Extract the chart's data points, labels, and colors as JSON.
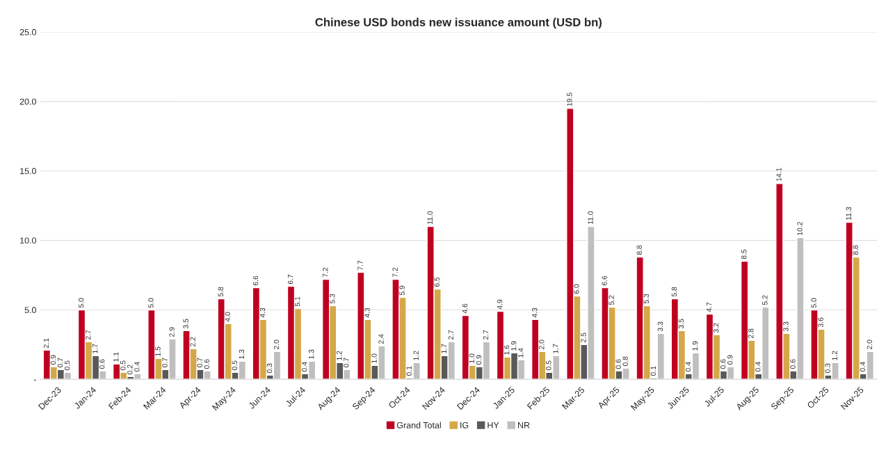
{
  "chart_data": {
    "type": "bar",
    "title": "Chinese USD bonds new issuance amount (USD bn)",
    "categories": [
      "Dec-23",
      "Jan-24",
      "Feb-24",
      "Mar-24",
      "Apr-24",
      "May-24",
      "Jun-24",
      "Jul-24",
      "Aug-24",
      "Sep-24",
      "Oct-24",
      "Nov-24",
      "Dec-24",
      "Jan-25",
      "Feb-25",
      "Mar-25",
      "Apr-25",
      "May-25",
      "Jun-25",
      "Jul-25",
      "Aug-25",
      "Sep-25",
      "Oct-25",
      "Nov-25"
    ],
    "series": [
      {
        "name": "Grand Total",
        "color": "#c00020",
        "values": [
          2.1,
          5.0,
          1.1,
          5.0,
          3.5,
          5.8,
          6.6,
          6.7,
          7.2,
          7.7,
          7.2,
          11.0,
          4.6,
          4.9,
          4.3,
          19.5,
          6.6,
          8.8,
          5.8,
          4.7,
          8.5,
          14.1,
          5.0,
          11.3
        ],
        "value_labels": [
          "2.1",
          "5.0",
          "1.1",
          "5.0",
          "3.5",
          "5.8",
          "6.6",
          "6.7",
          "7.2",
          "7.7",
          "7.2",
          "11.0",
          "4.6",
          "4.9",
          "4.3",
          "19.5",
          "6.6",
          "8.8",
          "5.8",
          "4.7",
          "8.5",
          "14.1",
          "5.0",
          "11.3"
        ]
      },
      {
        "name": "IG",
        "color": "#d4a849",
        "values": [
          0.9,
          2.7,
          0.5,
          1.5,
          2.2,
          4.0,
          4.3,
          5.1,
          5.3,
          4.3,
          5.9,
          6.5,
          1.0,
          1.6,
          2.0,
          6.0,
          5.2,
          5.3,
          3.5,
          3.2,
          2.8,
          3.3,
          3.6,
          8.8
        ],
        "value_labels": [
          "0.9",
          "2.7",
          "0.5",
          "1.5",
          "2.2",
          "4.0",
          "4.3",
          "5.1",
          "5.3",
          "4.3",
          "5.9",
          "6.5",
          "1.0",
          "1.6",
          "2.0",
          "6.0",
          "5.2",
          "5.3",
          "3.5",
          "3.2",
          "2.8",
          "3.3",
          "3.6",
          "8.8"
        ]
      },
      {
        "name": "HY",
        "color": "#595959",
        "values": [
          0.7,
          1.7,
          0.2,
          0.7,
          0.7,
          0.5,
          0.3,
          0.4,
          1.2,
          1.0,
          0.1,
          1.7,
          0.9,
          1.9,
          0.5,
          2.5,
          0.6,
          0.1,
          0.4,
          0.6,
          0.4,
          0.6,
          0.3,
          0.4
        ],
        "value_labels": [
          "0.7",
          "1.7",
          "0.2",
          "0.7",
          "0.7",
          "0.5",
          "0.3",
          "0.4",
          "1.2",
          "1.0",
          "0.1",
          "1.7",
          "0.9",
          "1.9",
          "0.5",
          "2.5",
          "0.6",
          "0.1",
          "0.4",
          "0.6",
          "0.4",
          "0.6",
          "0.3",
          "0.4"
        ]
      },
      {
        "name": "NR",
        "color": "#bfbfbf",
        "values": [
          0.5,
          0.6,
          0.4,
          2.9,
          0.6,
          1.3,
          2.0,
          1.3,
          0.7,
          2.4,
          1.2,
          2.7,
          2.7,
          1.4,
          1.7,
          11.0,
          0.8,
          3.3,
          1.9,
          0.9,
          5.2,
          10.2,
          1.2,
          2.0
        ],
        "value_labels": [
          "0.5",
          "0.6",
          "0.4",
          "2.9",
          "0.6",
          "1.3",
          "2.0",
          "1.3",
          "0.7",
          "2.4",
          "1.2",
          "2.7",
          "2.7",
          "1.4",
          "1.7",
          "11.0",
          "0.8",
          "3.3",
          "1.9",
          "0.9",
          "5.2",
          "10.2",
          "1.2",
          "2.0"
        ]
      }
    ],
    "ylim": [
      0,
      25
    ],
    "yticks": [
      {
        "value": 0,
        "label": "-"
      },
      {
        "value": 5,
        "label": "5.0"
      },
      {
        "value": 10,
        "label": "10.0"
      },
      {
        "value": 15,
        "label": "15.0"
      },
      {
        "value": 20,
        "label": "20.0"
      },
      {
        "value": 25,
        "label": "25.0"
      }
    ],
    "grid": "y",
    "legend": "bottom"
  }
}
